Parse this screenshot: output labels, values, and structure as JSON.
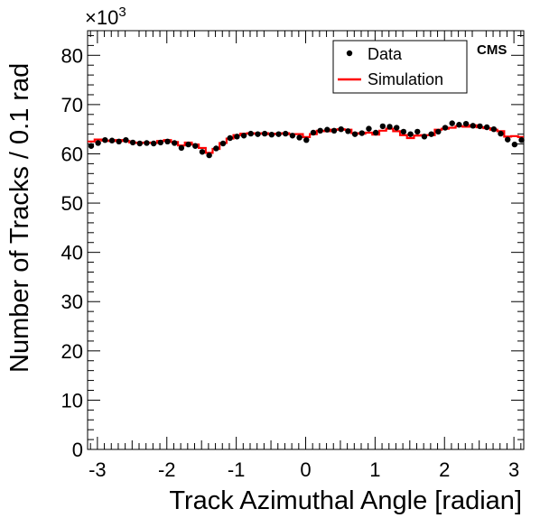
{
  "chart_data": {
    "type": "scatter",
    "xlabel": "Track Azimuthal Angle [radian]",
    "ylabel": "Number of Tracks / 0.1 rad",
    "y_multiplier_label": "×10",
    "y_multiplier_exponent": "3",
    "annotation": "CMS",
    "xlim": [
      -3.14159,
      3.14159
    ],
    "ylim": [
      0,
      85
    ],
    "x_ticks": [
      -3,
      -2,
      -1,
      0,
      1,
      2,
      3
    ],
    "y_ticks": [
      0,
      10,
      20,
      30,
      40,
      50,
      60,
      70,
      80
    ],
    "grid": false,
    "legend_position": "top-right",
    "bin_width": 0.1,
    "colors": {
      "data": "#000000",
      "simulation": "#ff0000"
    },
    "series": [
      {
        "name": "Data",
        "style": "markers",
        "x": [
          -3.09,
          -2.99,
          -2.89,
          -2.79,
          -2.69,
          -2.59,
          -2.49,
          -2.39,
          -2.29,
          -2.19,
          -2.09,
          -1.99,
          -1.89,
          -1.79,
          -1.69,
          -1.59,
          -1.49,
          -1.39,
          -1.29,
          -1.19,
          -1.09,
          -0.99,
          -0.89,
          -0.79,
          -0.69,
          -0.59,
          -0.49,
          -0.39,
          -0.29,
          -0.19,
          -0.09,
          0.01,
          0.11,
          0.21,
          0.31,
          0.41,
          0.51,
          0.61,
          0.71,
          0.81,
          0.91,
          1.01,
          1.11,
          1.21,
          1.31,
          1.41,
          1.51,
          1.61,
          1.71,
          1.81,
          1.91,
          2.01,
          2.11,
          2.21,
          2.31,
          2.41,
          2.51,
          2.61,
          2.71,
          2.81,
          2.91,
          3.01,
          3.11
        ],
        "values": [
          61.6,
          62.2,
          62.8,
          62.7,
          62.5,
          62.8,
          62.3,
          62.1,
          62.2,
          62.1,
          62.3,
          62.5,
          62.2,
          61.2,
          61.9,
          61.6,
          60.4,
          59.7,
          61.1,
          62.1,
          63.2,
          63.5,
          63.7,
          64.1,
          64.0,
          64.1,
          63.9,
          64.0,
          64.1,
          63.7,
          63.3,
          62.8,
          64.3,
          64.7,
          64.9,
          64.7,
          65.0,
          64.6,
          64.0,
          64.2,
          65.1,
          64.3,
          65.6,
          65.5,
          65.3,
          64.5,
          64.0,
          64.5,
          63.5,
          64.0,
          64.5,
          65.3,
          66.2,
          65.9,
          66.1,
          65.7,
          65.6,
          65.4,
          65.0,
          64.1,
          62.9,
          61.9,
          62.8
        ]
      },
      {
        "name": "Simulation",
        "style": "step",
        "x": [
          -3.09,
          -2.99,
          -2.89,
          -2.79,
          -2.69,
          -2.59,
          -2.49,
          -2.39,
          -2.29,
          -2.19,
          -2.09,
          -1.99,
          -1.89,
          -1.79,
          -1.69,
          -1.59,
          -1.49,
          -1.39,
          -1.29,
          -1.19,
          -1.09,
          -0.99,
          -0.89,
          -0.79,
          -0.69,
          -0.59,
          -0.49,
          -0.39,
          -0.29,
          -0.19,
          -0.09,
          0.01,
          0.11,
          0.21,
          0.31,
          0.41,
          0.51,
          0.61,
          0.71,
          0.81,
          0.91,
          1.01,
          1.11,
          1.21,
          1.31,
          1.41,
          1.51,
          1.61,
          1.71,
          1.81,
          1.91,
          2.01,
          2.11,
          2.21,
          2.31,
          2.41,
          2.51,
          2.61,
          2.71,
          2.81,
          2.91,
          3.01,
          3.11
        ],
        "values": [
          62.5,
          62.9,
          62.7,
          62.6,
          62.8,
          62.6,
          62.3,
          62.2,
          62.3,
          62.2,
          62.6,
          62.8,
          62.4,
          61.7,
          62.3,
          61.9,
          61.2,
          60.2,
          61.0,
          62.2,
          63.1,
          63.8,
          64.1,
          64.2,
          64.1,
          64.2,
          64.0,
          64.1,
          64.2,
          64.0,
          64.0,
          63.4,
          64.0,
          64.7,
          64.6,
          64.9,
          65.0,
          64.9,
          64.2,
          64.1,
          64.3,
          63.9,
          64.7,
          65.1,
          64.6,
          63.8,
          63.2,
          63.7,
          63.8,
          63.8,
          64.9,
          65.1,
          65.3,
          65.6,
          65.5,
          65.8,
          65.4,
          65.2,
          64.9,
          64.6,
          63.5,
          63.6,
          63.4
        ]
      }
    ]
  }
}
